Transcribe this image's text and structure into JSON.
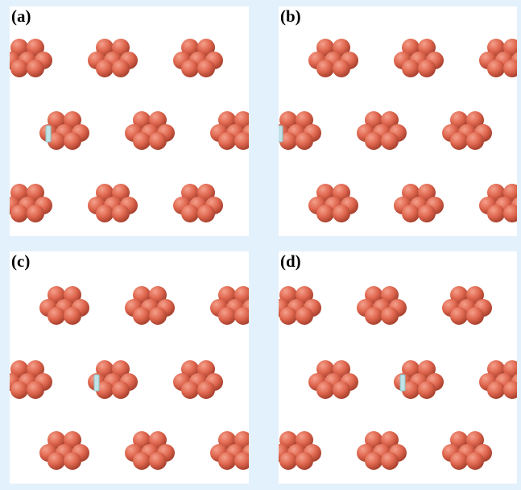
{
  "panels": [
    {
      "id": "a",
      "label": "(a)"
    },
    {
      "id": "b",
      "label": "(b)"
    },
    {
      "id": "c",
      "label": "(c)"
    },
    {
      "id": "d",
      "label": "(d)"
    }
  ],
  "colors": {
    "background": "#e3f1fc",
    "panel": "#ffffff",
    "atom": "#e0674f",
    "atom_highlight": "#f4a08c",
    "atom_shadow": "#a9422f",
    "marker": "#bfe3e6",
    "marker_edge": "#8ec3c8"
  }
}
